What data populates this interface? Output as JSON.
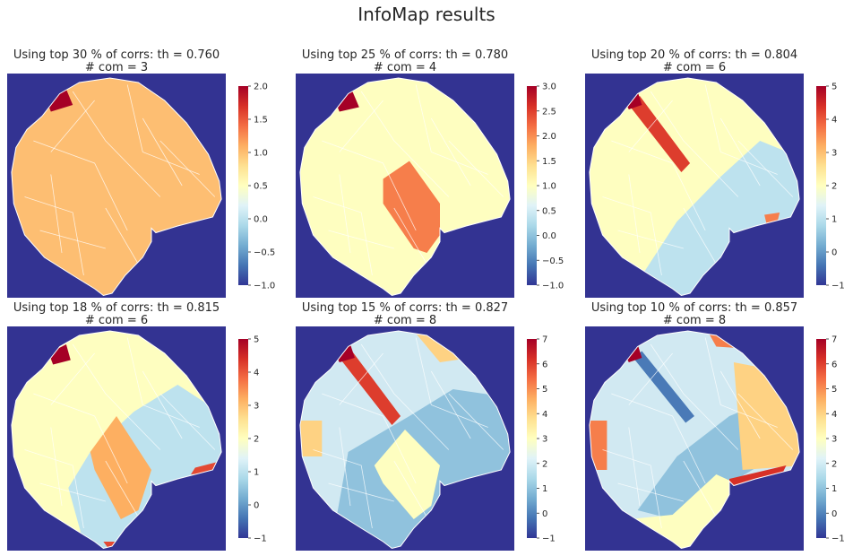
{
  "figure": {
    "title": "InfoMap results"
  },
  "colors": {
    "background": "#333392",
    "outline": "#ffffff"
  },
  "chart_data": [
    {
      "type": "heatmap",
      "title": "Using top 30 % of corrs: th = 0.760",
      "subtitle": "# com = 3",
      "colorbar": {
        "vmin": -1,
        "vmax": 2,
        "ticks": [
          {
            "v": -1,
            "label": "−1.0"
          },
          {
            "v": -0.5,
            "label": "−0.5"
          },
          {
            "v": 0,
            "label": "0.0"
          },
          {
            "v": 0.5,
            "label": "0.5"
          },
          {
            "v": 1,
            "label": "1.0"
          },
          {
            "v": 1.5,
            "label": "1.5"
          },
          {
            "v": 2,
            "label": "2.0"
          }
        ]
      },
      "regions": [
        {
          "community": 1,
          "color": "#fdbe72",
          "desc": "whole brain"
        },
        {
          "community": 2,
          "color": "#a50026",
          "desc": "small frontal spot"
        }
      ]
    },
    {
      "type": "heatmap",
      "title": "Using top 25 % of corrs: th = 0.780",
      "subtitle": "# com = 4",
      "colorbar": {
        "vmin": -1,
        "vmax": 3,
        "ticks": [
          {
            "v": -1,
            "label": "−1.0"
          },
          {
            "v": -0.5,
            "label": "−0.5"
          },
          {
            "v": 0,
            "label": "0.0"
          },
          {
            "v": 0.5,
            "label": "0.5"
          },
          {
            "v": 1,
            "label": "1.0"
          },
          {
            "v": 1.5,
            "label": "1.5"
          },
          {
            "v": 2,
            "label": "2.0"
          },
          {
            "v": 2.5,
            "label": "2.5"
          },
          {
            "v": 3,
            "label": "3.0"
          }
        ]
      },
      "regions": [
        {
          "community": 1,
          "color": "#fefec0",
          "desc": "most of brain"
        },
        {
          "community": 2,
          "color": "#f67e4b",
          "desc": "central diagonal band"
        },
        {
          "community": 3,
          "color": "#a50026",
          "desc": "small frontal spot"
        }
      ]
    },
    {
      "type": "heatmap",
      "title": "Using top 20 % of corrs: th = 0.804",
      "subtitle": "# com = 6",
      "colorbar": {
        "vmin": -1,
        "vmax": 5,
        "ticks": [
          {
            "v": -1,
            "label": "−1"
          },
          {
            "v": 0,
            "label": "0"
          },
          {
            "v": 1,
            "label": "1"
          },
          {
            "v": 2,
            "label": "2"
          },
          {
            "v": 3,
            "label": "3"
          },
          {
            "v": 4,
            "label": "4"
          },
          {
            "v": 5,
            "label": "5"
          }
        ]
      },
      "regions": [
        {
          "community": 1,
          "color": "#fefec0",
          "desc": "upper left"
        },
        {
          "community": 0,
          "color": "#bde2ee",
          "desc": "lower right"
        },
        {
          "community": 4,
          "color": "#dd3d2d",
          "desc": "diagonal streak"
        },
        {
          "community": 3,
          "color": "#f67e4b",
          "desc": "small lobe spot"
        },
        {
          "community": 5,
          "color": "#a50026",
          "desc": "small frontal spot"
        }
      ]
    },
    {
      "type": "heatmap",
      "title": "Using top 18 % of corrs: th = 0.815",
      "subtitle": "# com = 6",
      "colorbar": {
        "vmin": -1,
        "vmax": 5,
        "ticks": [
          {
            "v": -1,
            "label": "−1"
          },
          {
            "v": 0,
            "label": "0"
          },
          {
            "v": 1,
            "label": "1"
          },
          {
            "v": 2,
            "label": "2"
          },
          {
            "v": 3,
            "label": "3"
          },
          {
            "v": 4,
            "label": "4"
          },
          {
            "v": 5,
            "label": "5"
          }
        ]
      },
      "regions": [
        {
          "community": 2,
          "color": "#fefec0",
          "desc": "upper left"
        },
        {
          "community": 1,
          "color": "#bde2ee",
          "desc": "right and bottom"
        },
        {
          "community": 3,
          "color": "#fdaf61",
          "desc": "central band"
        },
        {
          "community": 4,
          "color": "#e34933",
          "desc": "lobe tip and bottom tip"
        },
        {
          "community": 5,
          "color": "#a50026",
          "desc": "small frontal spot"
        }
      ]
    },
    {
      "type": "heatmap",
      "title": "Using top 15 % of corrs: th = 0.827",
      "subtitle": "# com = 8",
      "colorbar": {
        "vmin": -1,
        "vmax": 7,
        "ticks": [
          {
            "v": -1,
            "label": "−1"
          },
          {
            "v": 0,
            "label": "0"
          },
          {
            "v": 1,
            "label": "1"
          },
          {
            "v": 2,
            "label": "2"
          },
          {
            "v": 3,
            "label": "3"
          },
          {
            "v": 4,
            "label": "4"
          },
          {
            "v": 5,
            "label": "5"
          },
          {
            "v": 6,
            "label": "6"
          },
          {
            "v": 7,
            "label": "7"
          }
        ]
      },
      "regions": [
        {
          "community": 2,
          "color": "#d1e9f2",
          "desc": "upper area"
        },
        {
          "community": 1,
          "color": "#90c2dd",
          "desc": "lower bands"
        },
        {
          "community": 3,
          "color": "#fefec0",
          "desc": "central band"
        },
        {
          "community": 4,
          "color": "#fed283",
          "desc": "top right and left edge"
        },
        {
          "community": 6,
          "color": "#dd3d2d",
          "desc": "diagonal streak"
        },
        {
          "community": 7,
          "color": "#a50026",
          "desc": "small frontal spot"
        }
      ]
    },
    {
      "type": "heatmap",
      "title": "Using top 10 % of corrs: th = 0.857",
      "subtitle": "# com = 8",
      "colorbar": {
        "vmin": -1,
        "vmax": 7,
        "ticks": [
          {
            "v": -1,
            "label": "−1"
          },
          {
            "v": 0,
            "label": "0"
          },
          {
            "v": 1,
            "label": "1"
          },
          {
            "v": 2,
            "label": "2"
          },
          {
            "v": 3,
            "label": "3"
          },
          {
            "v": 4,
            "label": "4"
          },
          {
            "v": 5,
            "label": "5"
          },
          {
            "v": 6,
            "label": "6"
          },
          {
            "v": 7,
            "label": "7"
          }
        ]
      },
      "regions": [
        {
          "community": 2,
          "color": "#d1e9f2",
          "desc": "upper left"
        },
        {
          "community": 1,
          "color": "#90c2dd",
          "desc": "central bands"
        },
        {
          "community": 4,
          "color": "#fed283",
          "desc": "right lobe"
        },
        {
          "community": 3,
          "color": "#fefec0",
          "desc": "bottom"
        },
        {
          "community": 5,
          "color": "#f67e4b",
          "desc": "top right and left edge"
        },
        {
          "community": 0,
          "color": "#4a7ab7",
          "desc": "diagonal streak"
        },
        {
          "community": 6,
          "color": "#d73027",
          "desc": "lobe outline"
        },
        {
          "community": 7,
          "color": "#a50026",
          "desc": "small frontal spot"
        }
      ]
    }
  ]
}
